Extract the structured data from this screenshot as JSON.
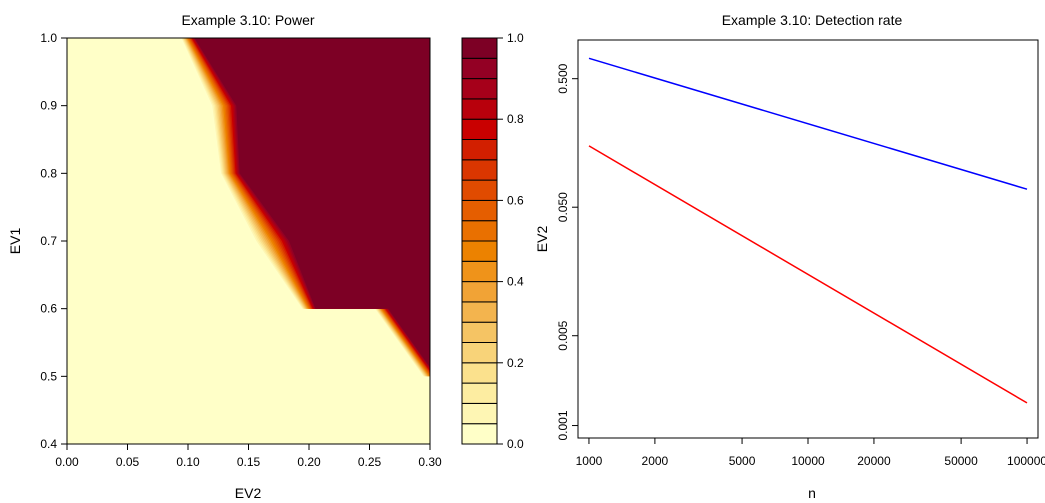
{
  "chart_data": [
    {
      "type": "heatmap",
      "title": "Example 3.10: Power",
      "xlabel": "EV2",
      "ylabel": "EV1",
      "xlim": [
        0.0,
        0.3
      ],
      "ylim": [
        0.4,
        1.0
      ],
      "x_ticks": [
        "0.00",
        "0.05",
        "0.10",
        "0.15",
        "0.20",
        "0.25",
        "0.30"
      ],
      "y_ticks": [
        "0.4",
        "0.5",
        "0.6",
        "0.7",
        "0.8",
        "0.9",
        "1.0"
      ],
      "colorbar": {
        "range": [
          0.0,
          1.0
        ],
        "ticks": [
          "0.0",
          "0.2",
          "0.4",
          "0.6",
          "0.8",
          "1.0"
        ],
        "levels": 20,
        "colors": [
          "#FFFFC8",
          "#FEF6B4",
          "#FDEDA1",
          "#FBE18D",
          "#F8D379",
          "#F5C464",
          "#F3B44E",
          "#F1A336",
          "#EF931A",
          "#EC8200",
          "#E97000",
          "#E55E00",
          "#E04B00",
          "#DA3600",
          "#D21F00",
          "#C90000",
          "#B8000C",
          "#A6001A",
          "#930024",
          "#7D0025"
        ]
      },
      "boundary_power_0_5": [
        [
          0.1,
          1.0
        ],
        [
          0.13,
          0.9
        ],
        [
          0.135,
          0.8
        ],
        [
          0.17,
          0.7
        ],
        [
          0.2,
          0.6
        ],
        [
          0.26,
          0.6
        ],
        [
          0.3,
          0.5
        ]
      ],
      "transition_width": [
        0.012,
        0.022,
        0.017,
        0.03,
        0.012,
        0.012,
        0.012
      ]
    },
    {
      "type": "line",
      "title": "Example 3.10: Detection rate",
      "xlabel": "n",
      "ylabel": "EV2",
      "xscale": "log",
      "yscale": "log",
      "xlim": [
        1000,
        100000
      ],
      "ylim": [
        0.0008,
        1.0
      ],
      "x_ticks": [
        1000,
        2000,
        5000,
        10000,
        20000,
        50000,
        100000
      ],
      "x_tick_labels": [
        "1000",
        "2000",
        "5000",
        "10000",
        "20000",
        "50000",
        "100000"
      ],
      "y_ticks": [
        0.001,
        0.005,
        0.05,
        0.5
      ],
      "y_tick_labels": [
        "0.001",
        "0.005",
        "0.050",
        "0.500"
      ],
      "series": [
        {
          "x": [
            1000,
            100000
          ],
          "y": [
            0.72,
            0.069
          ],
          "color": "#0000FF"
        },
        {
          "x": [
            1000,
            100000
          ],
          "y": [
            0.15,
            0.0015
          ],
          "color": "#FF0000"
        }
      ]
    }
  ]
}
